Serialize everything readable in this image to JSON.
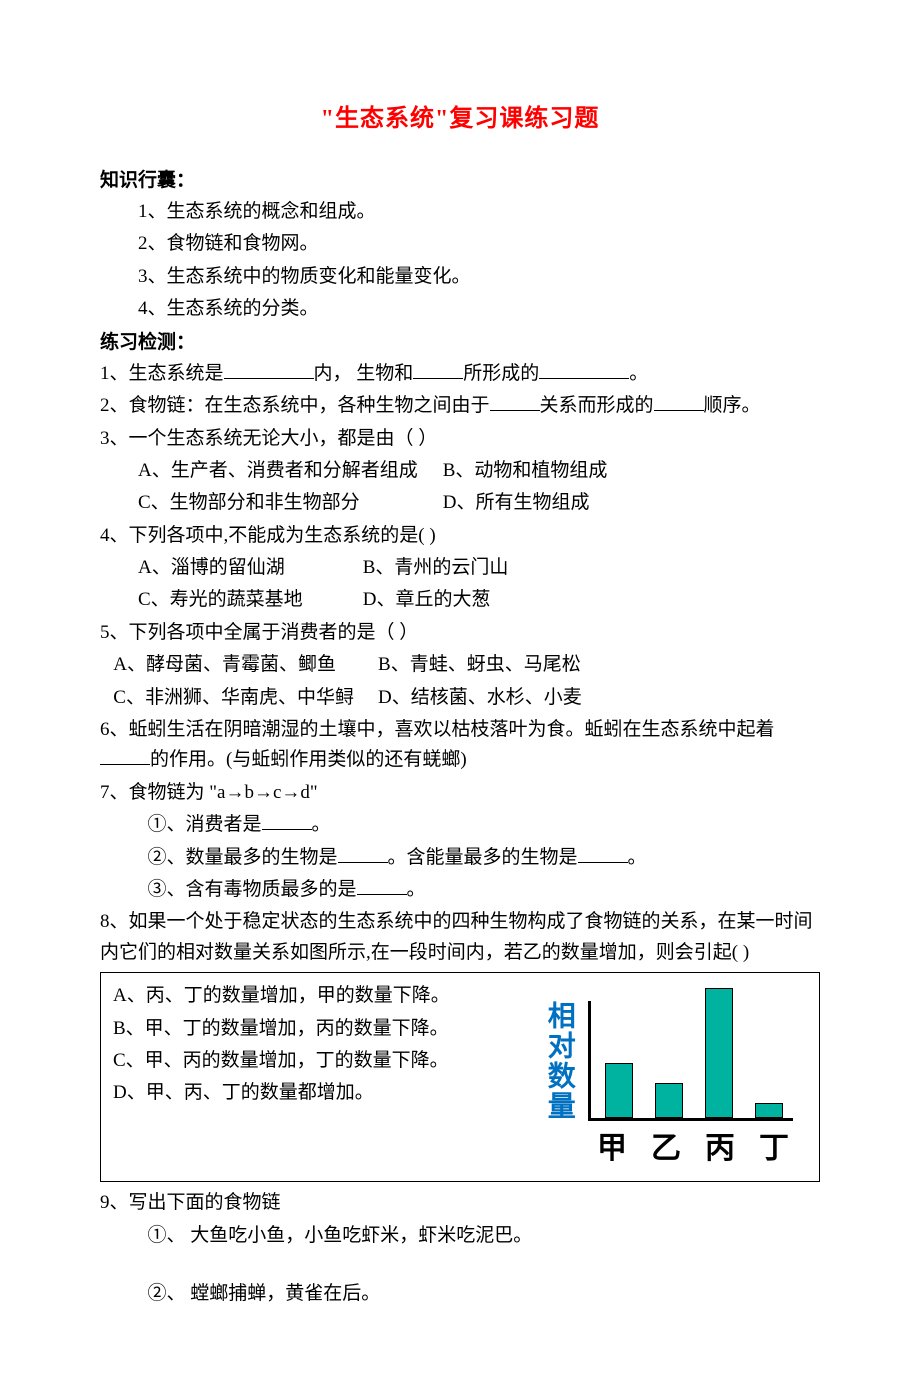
{
  "title": "\"生态系统\"复习课练习题",
  "section1_header": "知识行囊：",
  "knowledge": {
    "k1": "1、生态系统的概念和组成。",
    "k2": "2、食物链和食物网。",
    "k3": "3、生态系统中的物质变化和能量变化。",
    "k4": "4、生态系统的分类。"
  },
  "section2_header": "练习检测：",
  "q1_a": "1、生态系统是",
  "q1_b": "内，  生物和",
  "q1_c": "所形成的",
  "q1_d": "。",
  "q2_a": "2、食物链：在生态系统中，各种生物之间由于",
  "q2_b": "关系而形成的",
  "q2_c": "顺序。",
  "q3": "3、一个生态系统无论大小，都是由（      ）",
  "q3_a": "A、生产者、消费者和分解者组成",
  "q3_b": "B、动物和植物组成",
  "q3_c": "C、生物部分和非生物部分",
  "q3_d": "D、所有生物组成",
  "q4": "4、下列各项中,不能成为生态系统的是(      )",
  "q4_a": "A、淄博的留仙湖",
  "q4_b": "B、青州的云门山",
  "q4_c": "C、寿光的蔬菜基地",
  "q4_d": "D、章丘的大葱",
  "q5": "5、下列各项中全属于消费者的是（      ）",
  "q5_a": "A、酵母菌、青霉菌、鲫鱼",
  "q5_b": "B、青蛙、蚜虫、马尾松",
  "q5_c": "C、非洲狮、华南虎、中华鲟",
  "q5_d": "D、结核菌、水杉、小麦",
  "q6_a": "6、蚯蚓生活在阴暗潮湿的土壤中，喜欢以枯枝落叶为食。蚯蚓在生态系统中起着",
  "q6_b": "的作用。(与蚯蚓作用类似的还有蜣螂)",
  "q7": "7、食物链为 \"a→b→c→d\"",
  "q7_1a": "①、消费者是",
  "q7_1b": "。",
  "q7_2a": "②、数量最多的生物是",
  "q7_2b": "。含能量最多的生物是",
  "q7_2c": "。",
  "q7_3a": "③、含有毒物质最多的是",
  "q7_3b": "。",
  "q8_a": "8、如果一个处于稳定状态的生态系统中的四种生物构成了食物链的关系，在某一时间内它们的相对数量关系如图所示,在一段时间内，若乙的数量增加，则会引起(       )",
  "q8_opt_a": "A、丙、丁的数量增加，甲的数量下降。",
  "q8_opt_b": "B、甲、丁的数量增加，丙的数量下降。",
  "q8_opt_c": "C、甲、丙的数量增加，丁的数量下降。",
  "q8_opt_d": "D、甲、丙、丁的数量都增加。",
  "chart": {
    "y_label": "相对数量",
    "categories": [
      "甲",
      "乙",
      "丙",
      "丁"
    ],
    "values": [
      55,
      35,
      130,
      15
    ],
    "bar_color": "#00b3a0",
    "axis_color": "#000000",
    "ylabel_color": "#0070c0"
  },
  "q9": "9、写出下面的食物链",
  "q9_1": "①、 大鱼吃小鱼，小鱼吃虾米，虾米吃泥巴。",
  "q9_2": "②、 螳螂捕蝉，黄雀在后。"
}
